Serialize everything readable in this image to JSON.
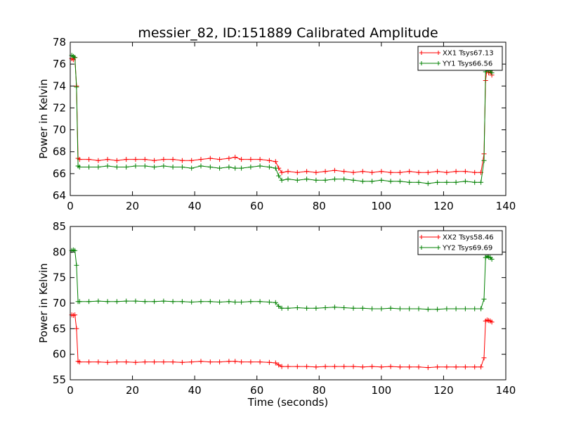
{
  "title": "messier_82, ID:151889 Calibrated Amplitude",
  "chart_data": [
    {
      "type": "line",
      "ylabel": "Power in Kelvin",
      "xlabel": "",
      "xlim": [
        0,
        140
      ],
      "ylim": [
        64,
        78
      ],
      "xticks": [
        "0",
        "20",
        "40",
        "60",
        "80",
        "100",
        "120",
        "140"
      ],
      "yticks": [
        "64",
        "66",
        "68",
        "70",
        "72",
        "74",
        "76",
        "78"
      ],
      "legend_position": "top-right",
      "grid": false,
      "series": [
        {
          "name": "XX1 Tsys67.13",
          "color": "#ff0000",
          "x": [
            0.5,
            1.0,
            1.5,
            2.0,
            2.5,
            3,
            6,
            9,
            12,
            15,
            18,
            21,
            24,
            27,
            30,
            33,
            36,
            39,
            42,
            45,
            48,
            51,
            53,
            55,
            58,
            61,
            64,
            66,
            67,
            68,
            70,
            73,
            76,
            79,
            82,
            85,
            88,
            91,
            94,
            97,
            100,
            103,
            106,
            109,
            112,
            115,
            118,
            121,
            124,
            127,
            130,
            132,
            133,
            133.5,
            134,
            134.5,
            135,
            135.5
          ],
          "y": [
            76.5,
            76.4,
            76.6,
            74.0,
            67.4,
            67.3,
            67.3,
            67.2,
            67.3,
            67.2,
            67.3,
            67.3,
            67.3,
            67.2,
            67.3,
            67.3,
            67.2,
            67.2,
            67.3,
            67.4,
            67.3,
            67.4,
            67.5,
            67.3,
            67.3,
            67.3,
            67.2,
            67.1,
            66.5,
            66.1,
            66.2,
            66.1,
            66.2,
            66.1,
            66.2,
            66.3,
            66.2,
            66.1,
            66.2,
            66.1,
            66.2,
            66.1,
            66.1,
            66.2,
            66.1,
            66.1,
            66.2,
            66.1,
            66.2,
            66.2,
            66.1,
            66.1,
            67.8,
            74.5,
            75.6,
            75.2,
            75.3,
            75.0
          ]
        },
        {
          "name": "YY1 Tsys66.56",
          "color": "#008000",
          "x": [
            0.5,
            1.0,
            1.5,
            2.0,
            2.5,
            3,
            6,
            9,
            12,
            15,
            18,
            21,
            24,
            27,
            30,
            33,
            36,
            39,
            42,
            45,
            48,
            51,
            53,
            55,
            58,
            61,
            64,
            66,
            67,
            68,
            70,
            73,
            76,
            79,
            82,
            85,
            88,
            91,
            94,
            97,
            100,
            103,
            106,
            109,
            112,
            115,
            118,
            121,
            124,
            127,
            130,
            132,
            133,
            133.5,
            134,
            134.5,
            135,
            135.5
          ],
          "y": [
            76.8,
            76.7,
            76.6,
            73.9,
            66.7,
            66.6,
            66.6,
            66.6,
            66.7,
            66.6,
            66.6,
            66.7,
            66.7,
            66.6,
            66.7,
            66.6,
            66.6,
            66.5,
            66.7,
            66.6,
            66.5,
            66.6,
            66.5,
            66.5,
            66.6,
            66.7,
            66.6,
            66.5,
            65.8,
            65.4,
            65.5,
            65.4,
            65.5,
            65.4,
            65.4,
            65.5,
            65.5,
            65.4,
            65.3,
            65.3,
            65.4,
            65.3,
            65.3,
            65.2,
            65.2,
            65.1,
            65.2,
            65.2,
            65.2,
            65.3,
            65.2,
            65.2,
            67.2,
            75.3,
            75.5,
            75.4,
            75.4,
            75.2
          ]
        }
      ]
    },
    {
      "type": "line",
      "ylabel": "Power in Kelvin",
      "xlabel": "Time (seconds)",
      "xlim": [
        0,
        140
      ],
      "ylim": [
        55,
        85
      ],
      "xticks": [
        "0",
        "20",
        "40",
        "60",
        "80",
        "100",
        "120",
        "140"
      ],
      "yticks": [
        "55",
        "60",
        "65",
        "70",
        "75",
        "80",
        "85"
      ],
      "legend_position": "top-right",
      "grid": false,
      "series": [
        {
          "name": "XX2 Tsys58.46",
          "color": "#ff0000",
          "x": [
            0.5,
            1.0,
            1.5,
            2.0,
            2.5,
            3,
            6,
            9,
            12,
            15,
            18,
            21,
            24,
            27,
            30,
            33,
            36,
            39,
            42,
            45,
            48,
            51,
            53,
            55,
            58,
            61,
            64,
            66,
            67,
            68,
            70,
            73,
            76,
            79,
            82,
            85,
            88,
            91,
            94,
            97,
            100,
            103,
            106,
            109,
            112,
            115,
            118,
            121,
            124,
            127,
            130,
            132,
            133,
            133.5,
            134,
            134.5,
            135,
            135.5
          ],
          "y": [
            67.7,
            67.6,
            67.7,
            65.0,
            58.6,
            58.5,
            58.5,
            58.5,
            58.4,
            58.5,
            58.5,
            58.4,
            58.5,
            58.5,
            58.5,
            58.5,
            58.4,
            58.5,
            58.6,
            58.5,
            58.5,
            58.6,
            58.6,
            58.5,
            58.5,
            58.5,
            58.4,
            58.3,
            57.9,
            57.6,
            57.6,
            57.6,
            57.6,
            57.5,
            57.6,
            57.6,
            57.6,
            57.6,
            57.5,
            57.6,
            57.5,
            57.6,
            57.5,
            57.5,
            57.5,
            57.4,
            57.5,
            57.5,
            57.5,
            57.5,
            57.5,
            57.5,
            59.3,
            66.5,
            66.7,
            66.6,
            66.5,
            66.3
          ]
        },
        {
          "name": "YY2 Tsys69.69",
          "color": "#008000",
          "x": [
            0.5,
            1.0,
            1.5,
            2.0,
            2.5,
            3,
            6,
            9,
            12,
            15,
            18,
            21,
            24,
            27,
            30,
            33,
            36,
            39,
            42,
            45,
            48,
            51,
            53,
            55,
            58,
            61,
            64,
            66,
            67,
            68,
            70,
            73,
            76,
            79,
            82,
            85,
            88,
            91,
            94,
            97,
            100,
            103,
            106,
            109,
            112,
            115,
            118,
            121,
            124,
            127,
            130,
            132,
            133,
            133.5,
            134,
            134.5,
            135,
            135.5
          ],
          "y": [
            80.3,
            80.4,
            80.3,
            77.4,
            70.3,
            70.3,
            70.3,
            70.4,
            70.3,
            70.3,
            70.4,
            70.4,
            70.3,
            70.3,
            70.4,
            70.3,
            70.3,
            70.2,
            70.3,
            70.3,
            70.2,
            70.3,
            70.2,
            70.2,
            70.3,
            70.3,
            70.2,
            70.1,
            69.4,
            69.0,
            69.0,
            69.1,
            69.0,
            69.0,
            69.1,
            69.2,
            69.1,
            69.0,
            69.0,
            68.9,
            68.9,
            69.0,
            68.9,
            68.9,
            68.9,
            68.8,
            68.8,
            68.9,
            68.9,
            68.9,
            68.9,
            68.9,
            70.8,
            78.9,
            79.2,
            79.0,
            78.9,
            78.6
          ]
        }
      ]
    }
  ]
}
